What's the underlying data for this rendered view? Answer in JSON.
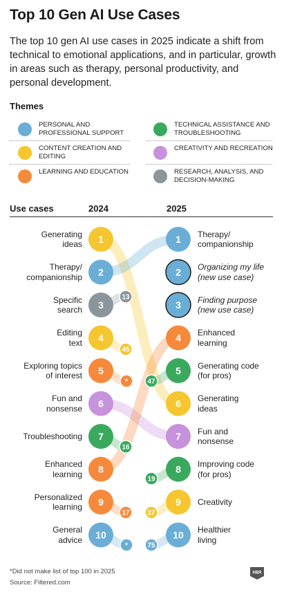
{
  "title": "Top 10 Gen AI Use Cases",
  "subtitle": "The top 10 gen AI use cases in 2025 indicate a shift from technical to emotional applications, and in particular, growth in areas such as therapy, personal productivity, and personal development.",
  "themes_heading": "Themes",
  "themes": [
    {
      "id": "personal",
      "label": "Personal and professional support",
      "color": "#6aaed6"
    },
    {
      "id": "technical",
      "label": "Technical assistance and troubleshooting",
      "color": "#3aa95e"
    },
    {
      "id": "content",
      "label": "Content creation and editing",
      "color": "#f5c630"
    },
    {
      "id": "creativity",
      "label": "Creativity and recreation",
      "color": "#c792dc"
    },
    {
      "id": "learning",
      "label": "Learning and education",
      "color": "#f68a3c"
    },
    {
      "id": "research",
      "label": "Research, analysis, and decision-making",
      "color": "#8a959c"
    }
  ],
  "use_cases_heading": "Use cases",
  "col_2024": "2024",
  "col_2025": "2025",
  "chart_data": {
    "type": "slope",
    "x": [
      "2024",
      "2025"
    ],
    "ranks_2024": [
      {
        "rank": 1,
        "label": "Generating ideas",
        "theme": "content",
        "rank_2025": "6"
      },
      {
        "rank": 2,
        "label": "Therapy/ companionship",
        "theme": "personal",
        "rank_2025": "1"
      },
      {
        "rank": 3,
        "label": "Specific search",
        "theme": "research",
        "rank_2025": "13"
      },
      {
        "rank": 4,
        "label": "Editing text",
        "theme": "content",
        "rank_2025": "45"
      },
      {
        "rank": 5,
        "label": "Exploring topics of interest",
        "theme": "learning",
        "rank_2025": "*"
      },
      {
        "rank": 6,
        "label": "Fun and nonsense",
        "theme": "creativity",
        "rank_2025": "7"
      },
      {
        "rank": 7,
        "label": "Troubleshooting",
        "theme": "technical",
        "rank_2025": "16"
      },
      {
        "rank": 8,
        "label": "Enhanced learning",
        "theme": "learning",
        "rank_2025": "4"
      },
      {
        "rank": 9,
        "label": "Personalized learning",
        "theme": "learning",
        "rank_2025": "17"
      },
      {
        "rank": 10,
        "label": "General advice",
        "theme": "personal",
        "rank_2025": "*"
      }
    ],
    "ranks_2025": [
      {
        "rank": 1,
        "label": "Therapy/ companionship",
        "theme": "personal",
        "rank_2024": "2"
      },
      {
        "rank": 2,
        "label": "Organizing my life (new use case)",
        "theme": "personal",
        "new": true
      },
      {
        "rank": 3,
        "label": "Finding purpose (new use case)",
        "theme": "personal",
        "new": true
      },
      {
        "rank": 4,
        "label": "Enhanced learning",
        "theme": "learning",
        "rank_2024": "8"
      },
      {
        "rank": 5,
        "label": "Generating code (for pros)",
        "theme": "technical",
        "rank_2024": "47"
      },
      {
        "rank": 6,
        "label": "Generating ideas",
        "theme": "content",
        "rank_2024": "1"
      },
      {
        "rank": 7,
        "label": "Fun and nonsense",
        "theme": "creativity",
        "rank_2024": "6"
      },
      {
        "rank": 8,
        "label": "Improving code (for pros)",
        "theme": "technical",
        "rank_2024": "19"
      },
      {
        "rank": 9,
        "label": "Creativity",
        "theme": "content",
        "rank_2024": "27"
      },
      {
        "rank": 10,
        "label": "Healthier living",
        "theme": "personal",
        "rank_2024": "75"
      }
    ]
  },
  "left_labels": [
    [
      "Generating",
      "ideas"
    ],
    [
      "Therapy/",
      "companionship"
    ],
    [
      "Specific",
      "search"
    ],
    [
      "Editing",
      "text"
    ],
    [
      "Exploring topics",
      "of interest"
    ],
    [
      "Fun and",
      "nonsense"
    ],
    [
      "Troubleshooting"
    ],
    [
      "Enhanced",
      "learning"
    ],
    [
      "Personalized",
      "learning"
    ],
    [
      "General",
      "advice"
    ]
  ],
  "right_labels": [
    [
      "Therapy/",
      "companionship"
    ],
    [
      "Organizing my life",
      "(new use case)"
    ],
    [
      "Finding purpose",
      "(new use case)"
    ],
    [
      "Enhanced",
      "learning"
    ],
    [
      "Generating code",
      "(for pros)"
    ],
    [
      "Generating",
      "ideas"
    ],
    [
      "Fun and",
      "nonsense"
    ],
    [
      "Improving code",
      "(for pros)"
    ],
    [
      "Creativity"
    ],
    [
      "Healthier",
      "living"
    ]
  ],
  "footnote": "*Did not make list of top 100 in 2025",
  "source": "Source: Filtered.com",
  "logo_text": "HBR"
}
